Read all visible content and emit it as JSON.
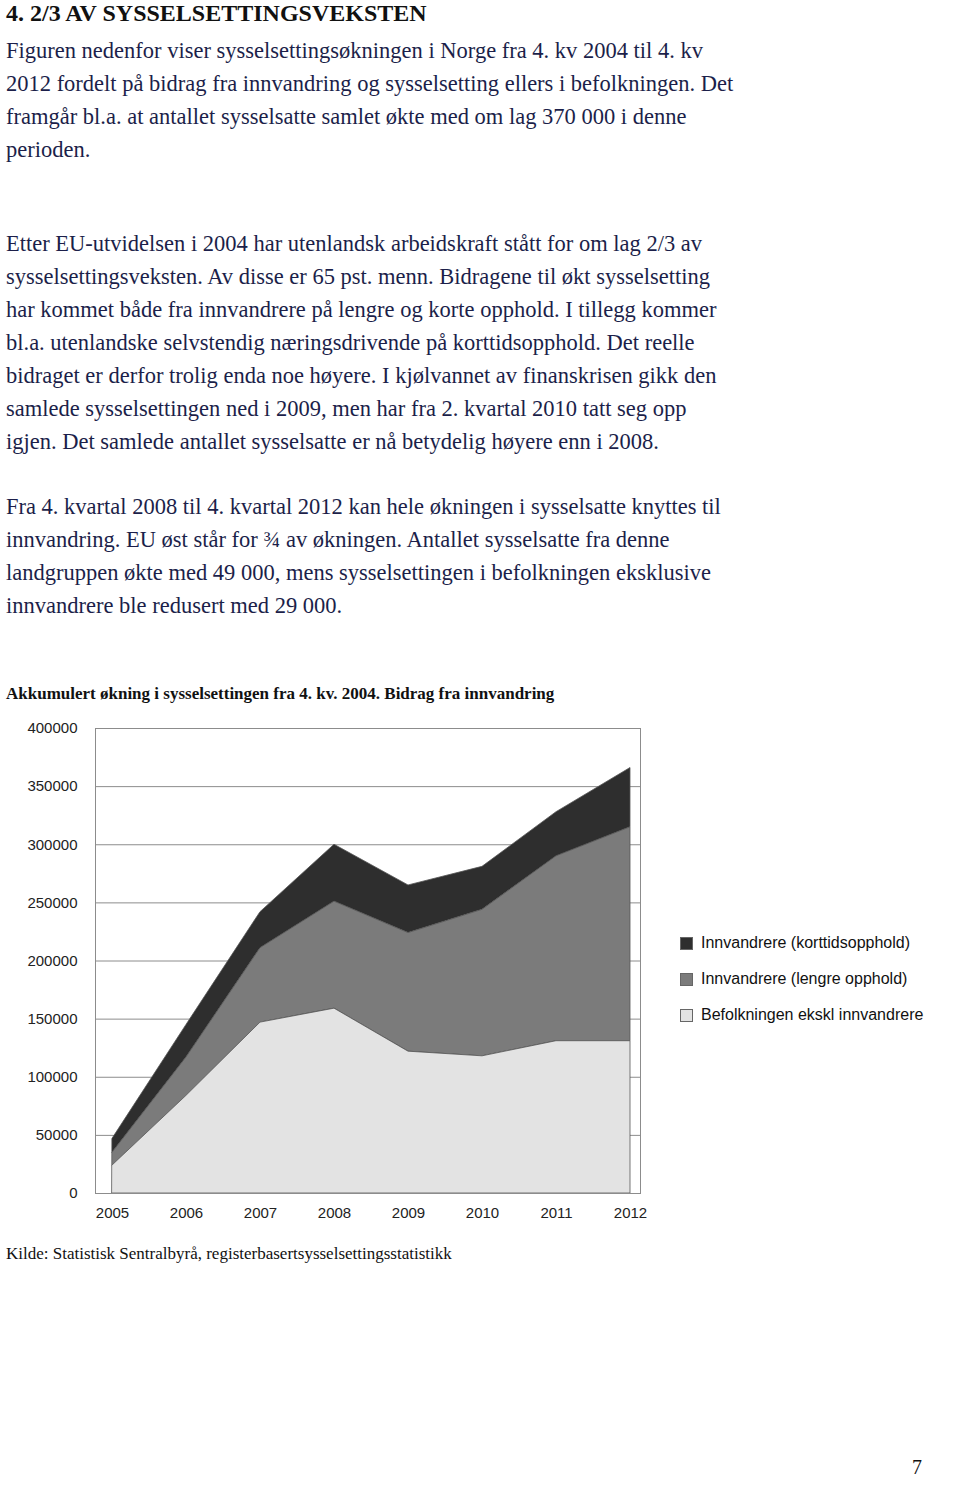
{
  "header": {
    "title": "4. 2/3 AV SYSSELSETTINGSVEKSTEN"
  },
  "paragraphs": [
    [
      "Figuren nedenfor viser sysselsettingsøkningen i Norge fra 4. kv 2004 til 4. kv",
      "2012 fordelt på bidrag fra innvandring og sysselsetting ellers i befolkningen. Det",
      "framgår bl.a. at antallet sysselsatte samlet økte med om lag 370 000 i denne",
      "perioden."
    ],
    [
      "Etter EU-utvidelsen i 2004 har utenlandsk arbeidskraft stått for om lag 2/3 av",
      "sysselsettingsveksten. Av disse er 65 pst. menn. Bidragene til økt sysselsetting",
      "har kommet både fra innvandrere på lengre og korte opphold. I tillegg kommer",
      "bl.a. utenlandske selvstendig næringsdrivende på korttidsopphold. Det reelle",
      "bidraget er derfor trolig enda noe høyere. I kjølvannet av finanskrisen gikk den",
      "samlede sysselsettingen ned i 2009, men har fra 2. kvartal 2010 tatt seg opp",
      "igjen. Det samlede antallet sysselsatte er nå betydelig høyere enn i 2008."
    ],
    [
      "Fra 4. kvartal 2008 til 4. kvartal 2012 kan hele økningen i sysselsatte knyttes til",
      "innvandring. EU øst står for ¾ av økningen. Antallet sysselsatte fra denne",
      "landgruppen økte med 49 000, mens sysselsettingen i befolkningen eksklusive",
      "innvandrere ble redusert med 29 000."
    ]
  ],
  "chart_data": {
    "type": "area",
    "title": "Akkumulert økning i sysselsettingen fra 4. kv. 2004. Bidrag fra innvandring",
    "x": [
      2005,
      2006,
      2007,
      2008,
      2009,
      2010,
      2011,
      2012
    ],
    "series": [
      {
        "name": "Innvandrere (korttidsopphold)",
        "color": "#2e2e2e",
        "values": [
          12000,
          28000,
          31000,
          49000,
          41000,
          37000,
          38000,
          51000
        ]
      },
      {
        "name": "Innvandrere (lengre opphold)",
        "color": "#7b7b7b",
        "values": [
          11000,
          33000,
          64000,
          92000,
          102000,
          126000,
          159000,
          184000
        ]
      },
      {
        "name": "Befolkningen ekskl innvandrere",
        "color": "#e3e3e3",
        "values": [
          24000,
          84000,
          147000,
          159000,
          122000,
          118000,
          131000,
          131000
        ]
      }
    ],
    "stacked": true,
    "xlim": [
      2005,
      2012
    ],
    "xticks": [
      2005,
      2006,
      2007,
      2008,
      2009,
      2010,
      2011,
      2012
    ],
    "ylim": [
      0,
      400000
    ],
    "yticks": [
      0,
      50000,
      100000,
      150000,
      200000,
      250000,
      300000,
      350000,
      400000
    ],
    "grid": true,
    "legend": "right"
  },
  "source": "Kilde: Statistisk Sentralbyrå, registerbasertsysselsettingsstatistikk",
  "footer": {
    "page_number": "7"
  }
}
